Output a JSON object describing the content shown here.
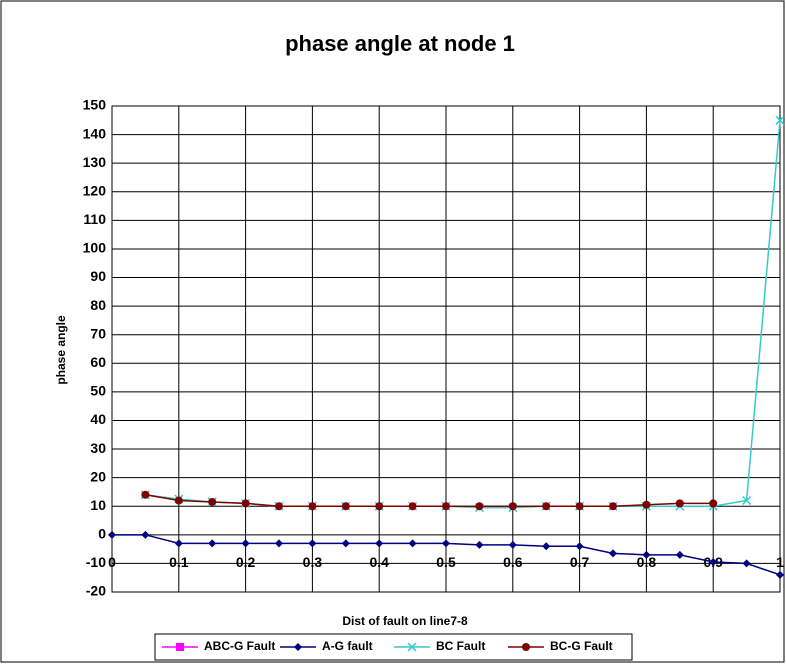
{
  "chart_data": {
    "type": "line",
    "title": "phase angle at node 1",
    "x_label": "Dist of fault on line7-8",
    "y_label": "phase angle",
    "x": [
      0,
      0.05,
      0.1,
      0.15,
      0.2,
      0.25,
      0.3,
      0.35,
      0.4,
      0.45,
      0.5,
      0.55,
      0.6,
      0.65,
      0.7,
      0.75,
      0.8,
      0.85,
      0.9,
      0.95,
      1
    ],
    "series": [
      {
        "name": "ABC-G Fault",
        "color": "#ff00ff",
        "marker": "square",
        "values": [
          null,
          null,
          null,
          null,
          null,
          null,
          null,
          null,
          null,
          null,
          null,
          null,
          null,
          null,
          null,
          null,
          null,
          null,
          null,
          null,
          null
        ]
      },
      {
        "name": "A-G fault",
        "color": "#000080",
        "marker": "diamond",
        "values": [
          0,
          0,
          -3,
          -3,
          -3,
          -3,
          -3,
          -3,
          -3,
          -3,
          -3,
          -3.5,
          -3.5,
          -4,
          -4,
          -6.5,
          -7,
          -7,
          -9.5,
          -10,
          -14
        ]
      },
      {
        "name": "BC Fault",
        "color": "#33cccc",
        "marker": "x",
        "values": [
          null,
          14,
          12.5,
          11.5,
          11,
          10,
          10,
          10,
          10,
          10,
          10,
          9.5,
          9.5,
          10,
          10,
          10,
          10,
          10,
          10,
          12,
          145
        ]
      },
      {
        "name": "BC-G Fault",
        "color": "#800000",
        "marker": "circle",
        "values": [
          null,
          14,
          12,
          11.5,
          11,
          10,
          10,
          10,
          10,
          10,
          10,
          10,
          10,
          10,
          10,
          10,
          10.5,
          11,
          11,
          null,
          null
        ]
      }
    ],
    "xlim": [
      0,
      1
    ],
    "xticks": [
      0,
      0.1,
      0.2,
      0.3,
      0.4,
      0.5,
      0.6,
      0.7,
      0.8,
      0.9,
      1
    ],
    "ylim": [
      -20,
      150
    ],
    "yticks": [
      -20,
      -10,
      0,
      10,
      20,
      30,
      40,
      50,
      60,
      70,
      80,
      90,
      100,
      110,
      120,
      130,
      140,
      150
    ],
    "grid": true,
    "legend": "bottom"
  }
}
